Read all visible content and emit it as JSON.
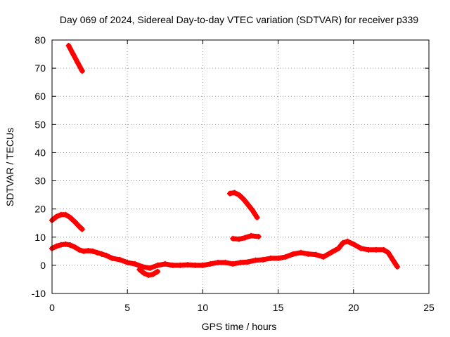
{
  "chart_data": {
    "type": "scatter",
    "title": "Day 069 of 2024, Sidereal Day-to-day VTEC variation (SDTVAR) for receiver p339",
    "xlabel": "GPS time / hours",
    "ylabel": "SDTVAR / TECUs",
    "xlim": [
      0,
      25
    ],
    "ylim": [
      -10,
      80
    ],
    "xticks": [
      0,
      5,
      10,
      15,
      20,
      25
    ],
    "yticks": [
      -10,
      0,
      10,
      20,
      30,
      40,
      50,
      60,
      70,
      80
    ],
    "grid": true,
    "marker_color": "#ff0000",
    "series": [
      {
        "name": "track-1",
        "x": [
          1.1,
          1.4,
          1.7,
          2.0
        ],
        "y": [
          78,
          75,
          72,
          69
        ]
      },
      {
        "name": "track-2",
        "x": [
          0.0,
          0.3,
          0.6,
          0.9,
          1.2,
          1.5,
          1.8,
          2.0
        ],
        "y": [
          16,
          17.3,
          18,
          18,
          17,
          15.5,
          13.8,
          12.8
        ]
      },
      {
        "name": "track-3",
        "x": [
          0.0,
          0.3,
          0.6,
          0.9,
          1.2,
          1.5,
          1.8,
          2.1,
          2.4,
          2.7,
          3.0,
          3.3,
          3.6,
          4.0,
          4.5,
          5.0,
          5.5,
          6.0,
          6.5,
          7.0,
          7.5,
          8.0,
          8.5,
          9.0,
          9.5,
          10.0,
          10.5,
          11.0,
          11.5,
          12.0,
          12.5,
          13.0,
          13.5,
          14.0,
          14.5,
          15.0,
          15.5,
          16.0,
          16.5,
          17.0,
          17.5,
          18.0,
          18.5,
          19.0,
          19.3,
          19.6,
          20.0,
          20.5,
          21.0,
          21.5,
          22.0,
          22.3,
          22.6,
          22.9
        ],
        "y": [
          6,
          6.8,
          7.3,
          7.5,
          7.2,
          6.5,
          5.5,
          5,
          5.2,
          5,
          4.5,
          4,
          3.5,
          2.5,
          2,
          1,
          0.5,
          -0.5,
          -1,
          0,
          0.5,
          0,
          0,
          0.2,
          0,
          0,
          0.5,
          1,
          1,
          0.5,
          1,
          1.2,
          1.8,
          2,
          2.5,
          2.5,
          3,
          4,
          4.5,
          4,
          3.8,
          3,
          4.5,
          6,
          8,
          8.5,
          7.5,
          6,
          5.5,
          5.5,
          5.5,
          4.5,
          2,
          -0.5
        ]
      },
      {
        "name": "track-4",
        "x": [
          5.8,
          6.1,
          6.4,
          6.7,
          7.0
        ],
        "y": [
          -1.5,
          -2.8,
          -3.5,
          -3.2,
          -2.2
        ]
      },
      {
        "name": "track-5",
        "x": [
          11.8,
          12.1,
          12.4,
          12.7,
          13.0,
          13.3,
          13.6
        ],
        "y": [
          25.5,
          25.8,
          25,
          23.5,
          21.5,
          19.5,
          17
        ]
      },
      {
        "name": "track-6",
        "x": [
          12.0,
          12.4,
          12.8,
          13.2,
          13.7
        ],
        "y": [
          9.5,
          9.3,
          9.8,
          10.5,
          10.2
        ]
      }
    ]
  }
}
